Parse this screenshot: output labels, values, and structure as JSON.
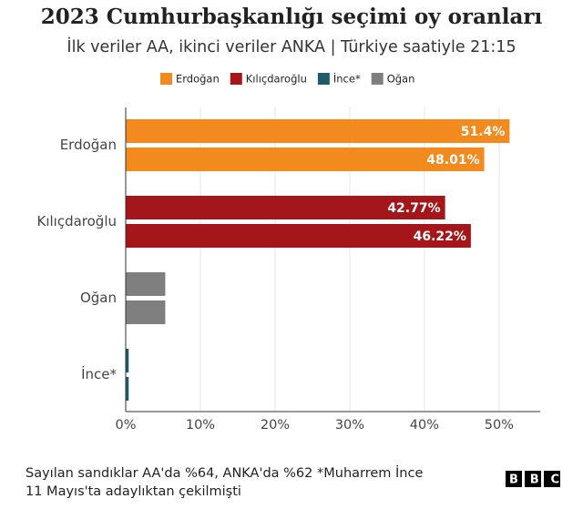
{
  "chart_data": {
    "type": "bar",
    "title": "2023 Cumhurbaşkanlığı seçimi oy oranları",
    "subtitle": "İlk veriler AA, ikinci veriler ANKA | Türkiye saatiyle 21:15",
    "legend": {
      "labels": [
        "Erdoğan",
        "Kılıçdaroğlu",
        "İnce*",
        "Oğan"
      ],
      "colors": [
        "#f28a1e",
        "#a4161a",
        "#1f5c6b",
        "#7f7f7f"
      ]
    },
    "categories": [
      "Erdoğan",
      "Kılıçdaroğlu",
      "Oğan",
      "İnce*"
    ],
    "colors": [
      "#f28a1e",
      "#a4161a",
      "#7f7f7f",
      "#1f5c6b"
    ],
    "series": [
      {
        "values": [
          51.4,
          42.77,
          5.3,
          0.4
        ],
        "value_labels": [
          "51.4%",
          "42.77%",
          null,
          null
        ]
      },
      {
        "values": [
          48.01,
          46.22,
          5.3,
          0.4
        ],
        "value_labels": [
          "48.01%",
          "46.22%",
          null,
          null
        ]
      }
    ],
    "xlim": [
      0,
      55.5
    ],
    "xticks": [
      {
        "value": 0,
        "label": "0%"
      },
      {
        "value": 10,
        "label": "10%"
      },
      {
        "value": 20,
        "label": "20%"
      },
      {
        "value": 30,
        "label": "30%"
      },
      {
        "value": 40,
        "label": "40%"
      },
      {
        "value": 50,
        "label": "50%"
      }
    ],
    "grid": true,
    "footnote": [
      "Sayılan sandıklar AA'da %64, ANKA'da %62 *Muharrem İnce",
      "11 Mayıs'ta adaylıktan çekilmişti"
    ],
    "source_logo": "BBC"
  }
}
